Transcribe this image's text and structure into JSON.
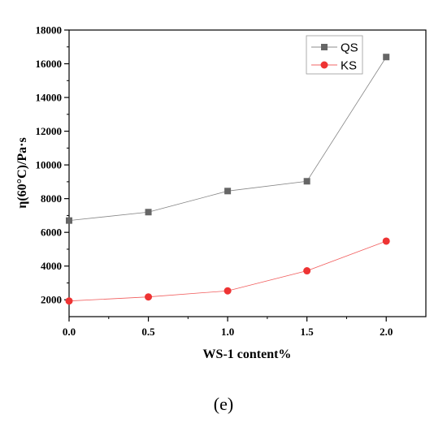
{
  "caption": "(e)",
  "chart_data": {
    "type": "line",
    "xlabel": "WS-1 content%",
    "ylabel": "η(60°C)/Pa·s",
    "xlim": [
      0,
      2.25
    ],
    "ylim": [
      1000,
      18000
    ],
    "x_ticks": [
      0.0,
      0.5,
      1.0,
      1.5,
      2.0
    ],
    "x_tick_labels": [
      "0.0",
      "0.5",
      "1.0",
      "1.5",
      "2.0"
    ],
    "y_ticks": [
      2000,
      4000,
      6000,
      8000,
      10000,
      12000,
      14000,
      16000,
      18000
    ],
    "y_tick_labels": [
      "2000",
      "4000",
      "6000",
      "8000",
      "10000",
      "12000",
      "14000",
      "16000",
      "18000"
    ],
    "x": [
      0.0,
      0.5,
      1.0,
      1.5,
      2.0
    ],
    "series": [
      {
        "name": "QS",
        "values": [
          6700,
          7200,
          8450,
          9030,
          16400
        ],
        "color": "#666666",
        "marker": "square"
      },
      {
        "name": "KS",
        "values": [
          1930,
          2170,
          2530,
          3720,
          5480
        ],
        "color": "#ee3333",
        "marker": "circle"
      }
    ],
    "legend_position": "top-right",
    "grid": false
  }
}
